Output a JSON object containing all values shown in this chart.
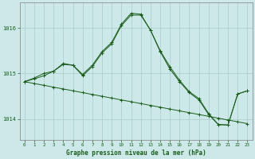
{
  "title": "Graphe pression niveau de la mer (hPa)",
  "background_color": "#cce8e8",
  "grid_color": "#aacccc",
  "line_color": "#1a5c1a",
  "xlim": [
    -0.5,
    23.5
  ],
  "ylim": [
    1013.55,
    1016.55
  ],
  "yticks": [
    1014,
    1015,
    1016
  ],
  "xticks": [
    0,
    1,
    2,
    3,
    4,
    5,
    6,
    7,
    8,
    9,
    10,
    11,
    12,
    13,
    14,
    15,
    16,
    17,
    18,
    19,
    20,
    21,
    22,
    23
  ],
  "line1": [
    1014.82,
    1014.9,
    1015.0,
    1015.05,
    1015.2,
    1015.18,
    1014.95,
    1015.15,
    1015.45,
    1015.65,
    1016.05,
    1016.28,
    1016.28,
    1015.95,
    1015.5,
    1015.15,
    1014.85,
    1014.6,
    1014.45,
    1014.12,
    1013.88,
    1013.87,
    1014.55,
    1014.62
  ],
  "line2": [
    1014.82,
    1014.88,
    1014.95,
    1015.05,
    1015.22,
    1015.18,
    1014.98,
    1015.18,
    1015.48,
    1015.68,
    1016.08,
    1016.32,
    1016.3,
    1015.95,
    1015.48,
    1015.1,
    1014.82,
    1014.58,
    1014.42,
    1014.1,
    1013.88,
    1013.87,
    1014.55,
    1014.62
  ],
  "line_diag": [
    1014.82,
    1014.78,
    1014.74,
    1014.7,
    1014.66,
    1014.62,
    1014.58,
    1014.54,
    1014.5,
    1014.46,
    1014.42,
    1014.38,
    1014.34,
    1014.3,
    1014.26,
    1014.22,
    1014.18,
    1014.14,
    1014.1,
    1014.06,
    1014.02,
    1013.98,
    1013.94,
    1013.9
  ]
}
